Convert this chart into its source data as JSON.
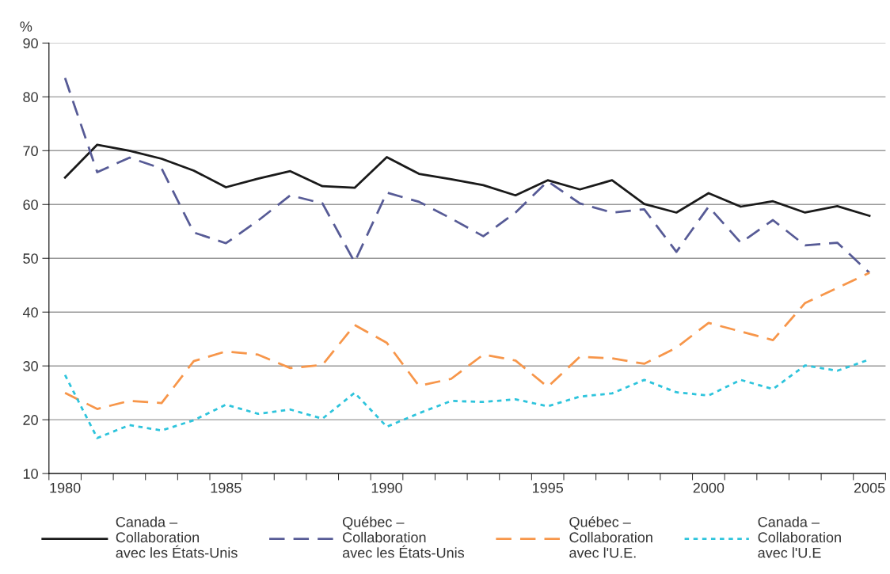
{
  "chart_data": {
    "type": "line",
    "ylabel": "%",
    "categories": [
      "1980",
      null,
      null,
      null,
      null,
      "1985",
      null,
      null,
      null,
      null,
      "1990",
      null,
      null,
      null,
      null,
      "1995",
      null,
      null,
      null,
      null,
      "2000",
      null,
      null,
      null,
      null,
      "2005"
    ],
    "ylim": [
      10,
      90
    ],
    "yticks": [
      10,
      20,
      30,
      40,
      50,
      60,
      70,
      80,
      90
    ],
    "grid": "y",
    "legend": "bottom",
    "marker": "none",
    "series": [
      {
        "name": "Canada – Collaboration avec les États-Unis",
        "color": "#1a1a1a",
        "line_style": "solid",
        "values": [
          65,
          71.1,
          70,
          68.5,
          66.3,
          63.2,
          64.8,
          66.2,
          63.4,
          63.1,
          68.8,
          65.7,
          64.7,
          63.6,
          61.7,
          64.5,
          62.8,
          64.5,
          60.1,
          58.5,
          62.1,
          59.6,
          60.6,
          58.5,
          59.7,
          57.9
        ]
      },
      {
        "name": "Québec – Collaboration avec les États-Unis",
        "color": "#575b96",
        "line_style": "dashed",
        "values": [
          83.5,
          66,
          68.7,
          66.7,
          54.8,
          52.8,
          57,
          61.7,
          60.2,
          49.3,
          62.2,
          60.5,
          57.4,
          54.1,
          58.5,
          64.3,
          60.2,
          58.5,
          59.1,
          51.2,
          59.6,
          52.9,
          57.1,
          52.4,
          52.9,
          47.3
        ]
      },
      {
        "name": "Québec – Collaboration avec l'U.E.",
        "color": "#f7964a",
        "line_style": "dashed",
        "values": [
          25,
          22,
          23.5,
          23.1,
          30.9,
          32.7,
          32.1,
          29.6,
          30.2,
          37.6,
          34.3,
          26.3,
          27.6,
          32.1,
          31,
          26.1,
          31.7,
          31.4,
          30.4,
          33.4,
          38,
          36.4,
          34.8,
          41.7,
          44.5,
          47.3
        ]
      },
      {
        "name": "Canada – Collaboration avec l'U.E",
        "color": "#2ec4dc",
        "line_style": "dotted",
        "values": [
          28.3,
          16.6,
          19,
          18,
          19.9,
          22.8,
          21.1,
          21.9,
          20.2,
          25,
          18.7,
          21.2,
          23.5,
          23.3,
          23.8,
          22.5,
          24.3,
          24.9,
          27.4,
          25.1,
          24.5,
          27.4,
          25.7,
          30.1,
          29.1,
          31.2
        ]
      }
    ]
  }
}
